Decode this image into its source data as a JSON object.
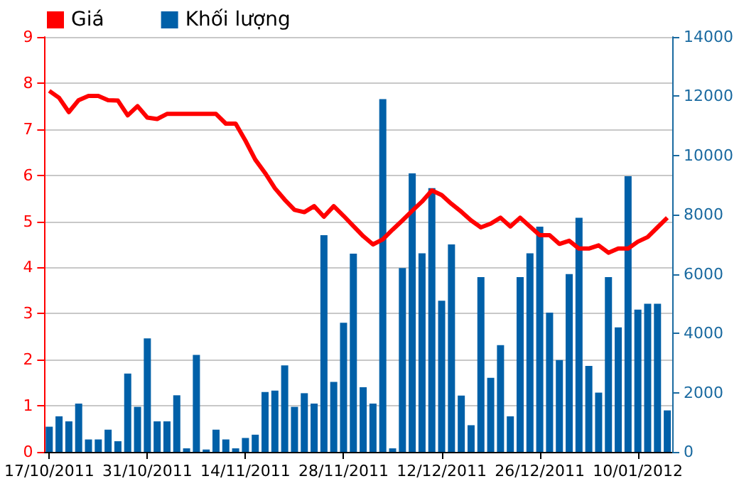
{
  "chart_data": {
    "type": "bar",
    "categories": [
      "17/10/2011",
      null,
      null,
      null,
      null,
      null,
      null,
      null,
      null,
      null,
      "31/10/2011",
      null,
      null,
      null,
      null,
      null,
      null,
      null,
      null,
      null,
      "14/11/2011",
      null,
      null,
      null,
      null,
      null,
      null,
      null,
      null,
      null,
      "28/11/2011",
      null,
      null,
      null,
      null,
      null,
      null,
      null,
      null,
      null,
      "12/12/2011",
      null,
      null,
      null,
      null,
      null,
      null,
      null,
      null,
      null,
      "26/12/2011",
      null,
      null,
      null,
      null,
      null,
      null,
      null,
      null,
      null,
      "10/01/2012",
      null,
      null,
      null
    ],
    "series": [
      {
        "name": "Giá",
        "type": "line",
        "color": "#ff0000",
        "axis": "y",
        "values": [
          7.83,
          7.68,
          7.37,
          7.63,
          7.72,
          7.72,
          7.63,
          7.62,
          7.3,
          7.5,
          7.25,
          7.22,
          7.33,
          7.33,
          7.33,
          7.33,
          7.33,
          7.33,
          7.12,
          7.12,
          6.75,
          6.34,
          6.05,
          5.72,
          5.47,
          5.25,
          5.2,
          5.33,
          5.1,
          5.33,
          5.12,
          4.9,
          4.68,
          4.5,
          4.61,
          4.82,
          5.02,
          5.23,
          5.43,
          5.67,
          5.57,
          5.38,
          5.21,
          5.02,
          4.87,
          4.95,
          5.08,
          4.89,
          5.08,
          4.89,
          4.7,
          4.7,
          4.51,
          4.58,
          4.41,
          4.41,
          4.48,
          4.32,
          4.41,
          4.41,
          4.56,
          4.66,
          4.87,
          5.08
        ]
      },
      {
        "name": "Khối lượng",
        "color": "#0060a8",
        "axis": "y2",
        "values": [
          850,
          1200,
          1030,
          1630,
          420,
          420,
          750,
          360,
          2640,
          1520,
          3830,
          1030,
          1030,
          1910,
          120,
          3270,
          80,
          750,
          420,
          120,
          470,
          580,
          2020,
          2070,
          2920,
          1520,
          1980,
          1630,
          7310,
          2360,
          4360,
          6690,
          2180,
          1630,
          11900,
          120,
          6200,
          9400,
          6700,
          8900,
          5100,
          7000,
          1900,
          900,
          5900,
          2500,
          3600,
          1200,
          5900,
          6700,
          7600,
          4700,
          3100,
          6000,
          7900,
          2900,
          2000,
          5900,
          4200,
          9300,
          4800,
          5000,
          5000,
          1400
        ]
      }
    ],
    "ylim": [
      0,
      9
    ],
    "yticks": [
      0,
      1,
      2,
      3,
      4,
      5,
      6,
      7,
      8,
      9
    ],
    "y2lim": [
      0,
      14000
    ],
    "y2ticks": [
      0,
      2000,
      4000,
      6000,
      8000,
      10000,
      12000,
      14000
    ],
    "grid": "y",
    "legend": "top left",
    "marker": "none",
    "line_style": "solid"
  }
}
